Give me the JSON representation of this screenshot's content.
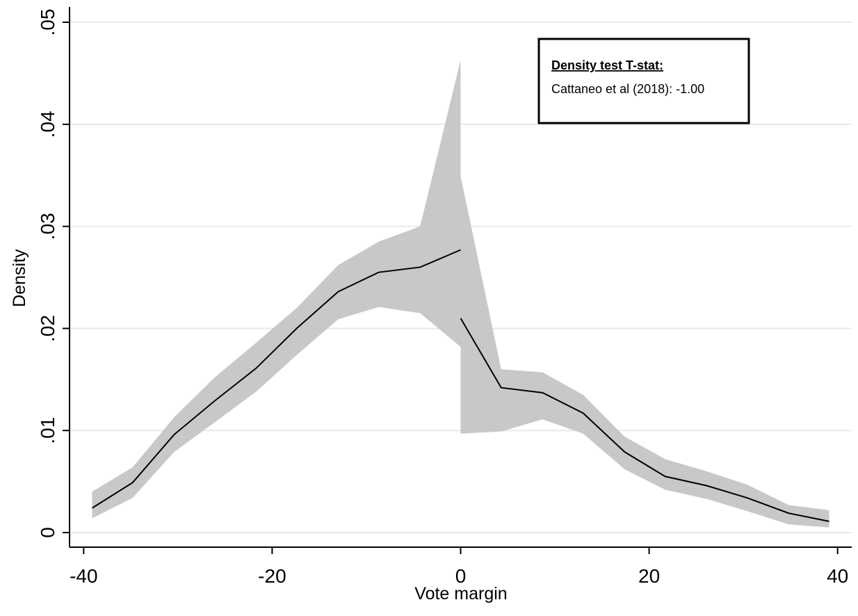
{
  "chart_data": {
    "type": "line",
    "x_label": "Vote margin",
    "y_label": "Density",
    "annotation": {
      "title": "Density test T-stat:",
      "text": "Cattaneo et al (2018): -1.00"
    },
    "xlim": [
      -41.5,
      41.5
    ],
    "ylim": [
      -0.00143,
      0.0515
    ],
    "xticks": [
      -40,
      -20,
      0,
      20,
      40
    ],
    "yticks": [
      0,
      {
        "value": 0.01,
        "label": ".01"
      },
      {
        "value": 0.02,
        "label": ".02"
      },
      {
        "value": 0.03,
        "label": ".03"
      },
      {
        "value": 0.04,
        "label": ".04"
      },
      {
        "value": 0.05,
        "label": ".05"
      }
    ],
    "grid": true,
    "line_color": "#000000",
    "band_color": "#c8c8c8",
    "series": [
      {
        "x": [
          -39.1,
          -34.8,
          -30.4,
          -26.1,
          -21.7,
          -17.4,
          -13.0,
          -8.7,
          -4.3,
          0
        ],
        "values": [
          0.0024,
          0.0049,
          0.0096,
          0.0129,
          0.0161,
          0.02,
          0.0236,
          0.0255,
          0.026,
          0.0277
        ],
        "upper": [
          0.004,
          0.0064,
          0.0113,
          0.0152,
          0.0186,
          0.022,
          0.0262,
          0.0285,
          0.03,
          0.0463
        ],
        "lower": [
          0.0014,
          0.0034,
          0.0079,
          0.0108,
          0.0138,
          0.0174,
          0.0209,
          0.0221,
          0.0215,
          0.0182
        ]
      },
      {
        "x": [
          0,
          4.3,
          8.7,
          13.0,
          17.4,
          21.7,
          26.1,
          30.4,
          34.8,
          39.1
        ],
        "values": [
          0.021,
          0.0142,
          0.0137,
          0.0117,
          0.0079,
          0.0055,
          0.0046,
          0.0034,
          0.0019,
          0.0011
        ],
        "upper": [
          0.0349,
          0.016,
          0.0157,
          0.0135,
          0.0094,
          0.0072,
          0.006,
          0.0047,
          0.0027,
          0.0022
        ],
        "lower": [
          0.0097,
          0.0099,
          0.0111,
          0.0097,
          0.0062,
          0.0042,
          0.0033,
          0.0021,
          0.0008,
          0.0005
        ]
      }
    ]
  }
}
